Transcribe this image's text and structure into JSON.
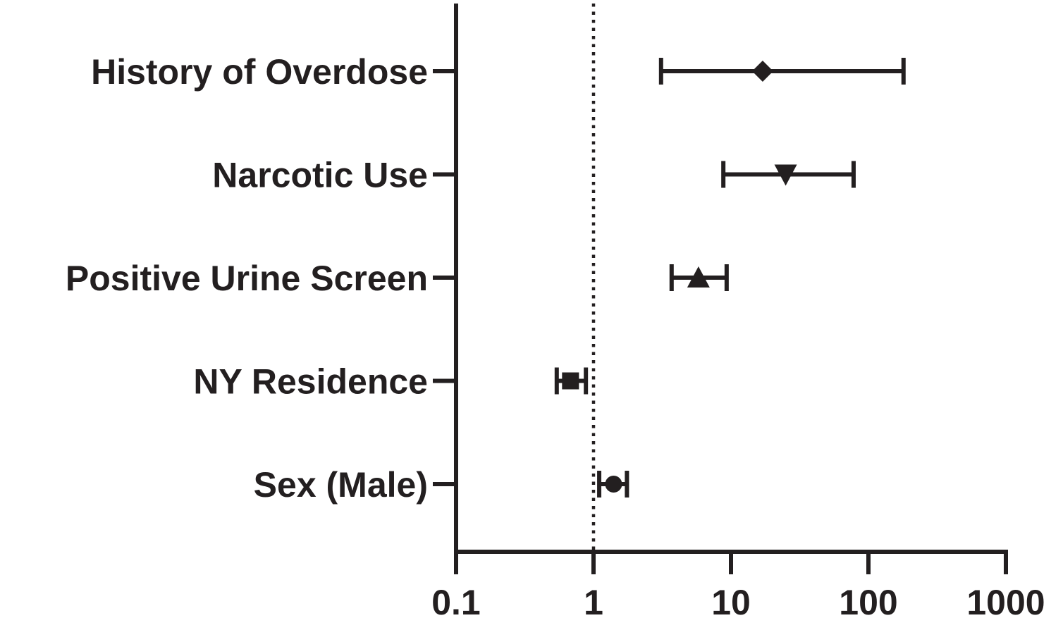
{
  "chart_data": {
    "type": "forest",
    "x_scale": "log",
    "xlim": [
      0.1,
      1000
    ],
    "x_ticks": [
      0.1,
      1,
      10,
      100,
      1000
    ],
    "x_tick_labels": [
      "0.1",
      "1",
      "10",
      "100",
      "1000"
    ],
    "reference_line": 1,
    "grid": false,
    "color": "#231f20",
    "rows": [
      {
        "label": "History of Overdose",
        "estimate": 17,
        "lower": 3.1,
        "upper": 180,
        "marker": "diamond"
      },
      {
        "label": "Narcotic Use",
        "estimate": 25,
        "lower": 8.8,
        "upper": 78,
        "marker": "triangle-down"
      },
      {
        "label": "Positive Urine Screen",
        "estimate": 5.8,
        "lower": 3.7,
        "upper": 9.3,
        "marker": "triangle-up"
      },
      {
        "label": "NY Residence",
        "estimate": 0.68,
        "lower": 0.54,
        "upper": 0.88,
        "marker": "square"
      },
      {
        "label": "Sex (Male)",
        "estimate": 1.4,
        "lower": 1.1,
        "upper": 1.75,
        "marker": "circle"
      }
    ]
  }
}
